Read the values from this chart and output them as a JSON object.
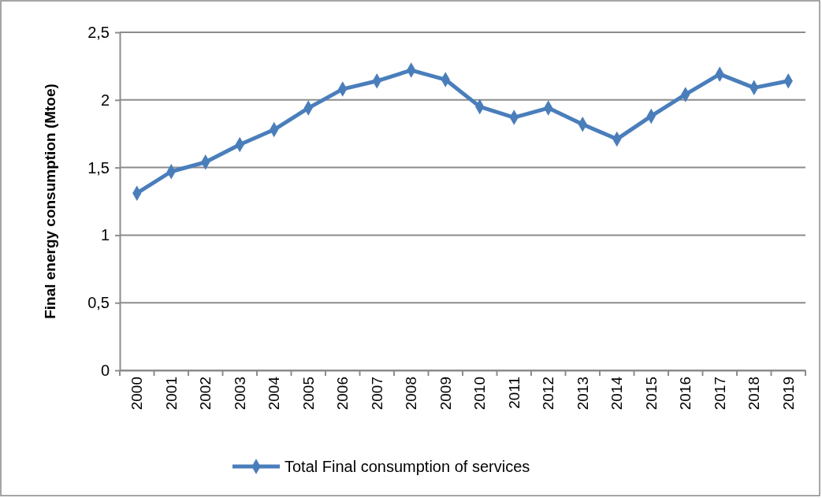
{
  "chart_data": {
    "type": "line",
    "ylabel": "Final energy consumption (Mtoe)",
    "categories": [
      "2000",
      "2001",
      "2002",
      "2003",
      "2004",
      "2005",
      "2006",
      "2007",
      "2008",
      "2009",
      "2010",
      "2011",
      "2012",
      "2013",
      "2014",
      "2015",
      "2016",
      "2017",
      "2018",
      "2019"
    ],
    "series": [
      {
        "name": "Total Final consumption of services",
        "color": "#4a7ebb",
        "values": [
          1.31,
          1.47,
          1.54,
          1.67,
          1.78,
          1.94,
          2.08,
          2.14,
          2.22,
          2.15,
          1.95,
          1.87,
          1.94,
          1.82,
          1.71,
          1.88,
          2.04,
          2.19,
          2.09,
          2.14
        ]
      }
    ],
    "ylim": [
      0,
      2.5
    ],
    "yticks": [
      0,
      {
        "value": 0.5,
        "label": "0,5"
      },
      1,
      {
        "value": 1.5,
        "label": "1,5"
      },
      2,
      {
        "value": 2.5,
        "label": "2,5"
      }
    ],
    "grid": "y",
    "legend": "bottom",
    "marker": "diamond",
    "line_style": "solid"
  }
}
